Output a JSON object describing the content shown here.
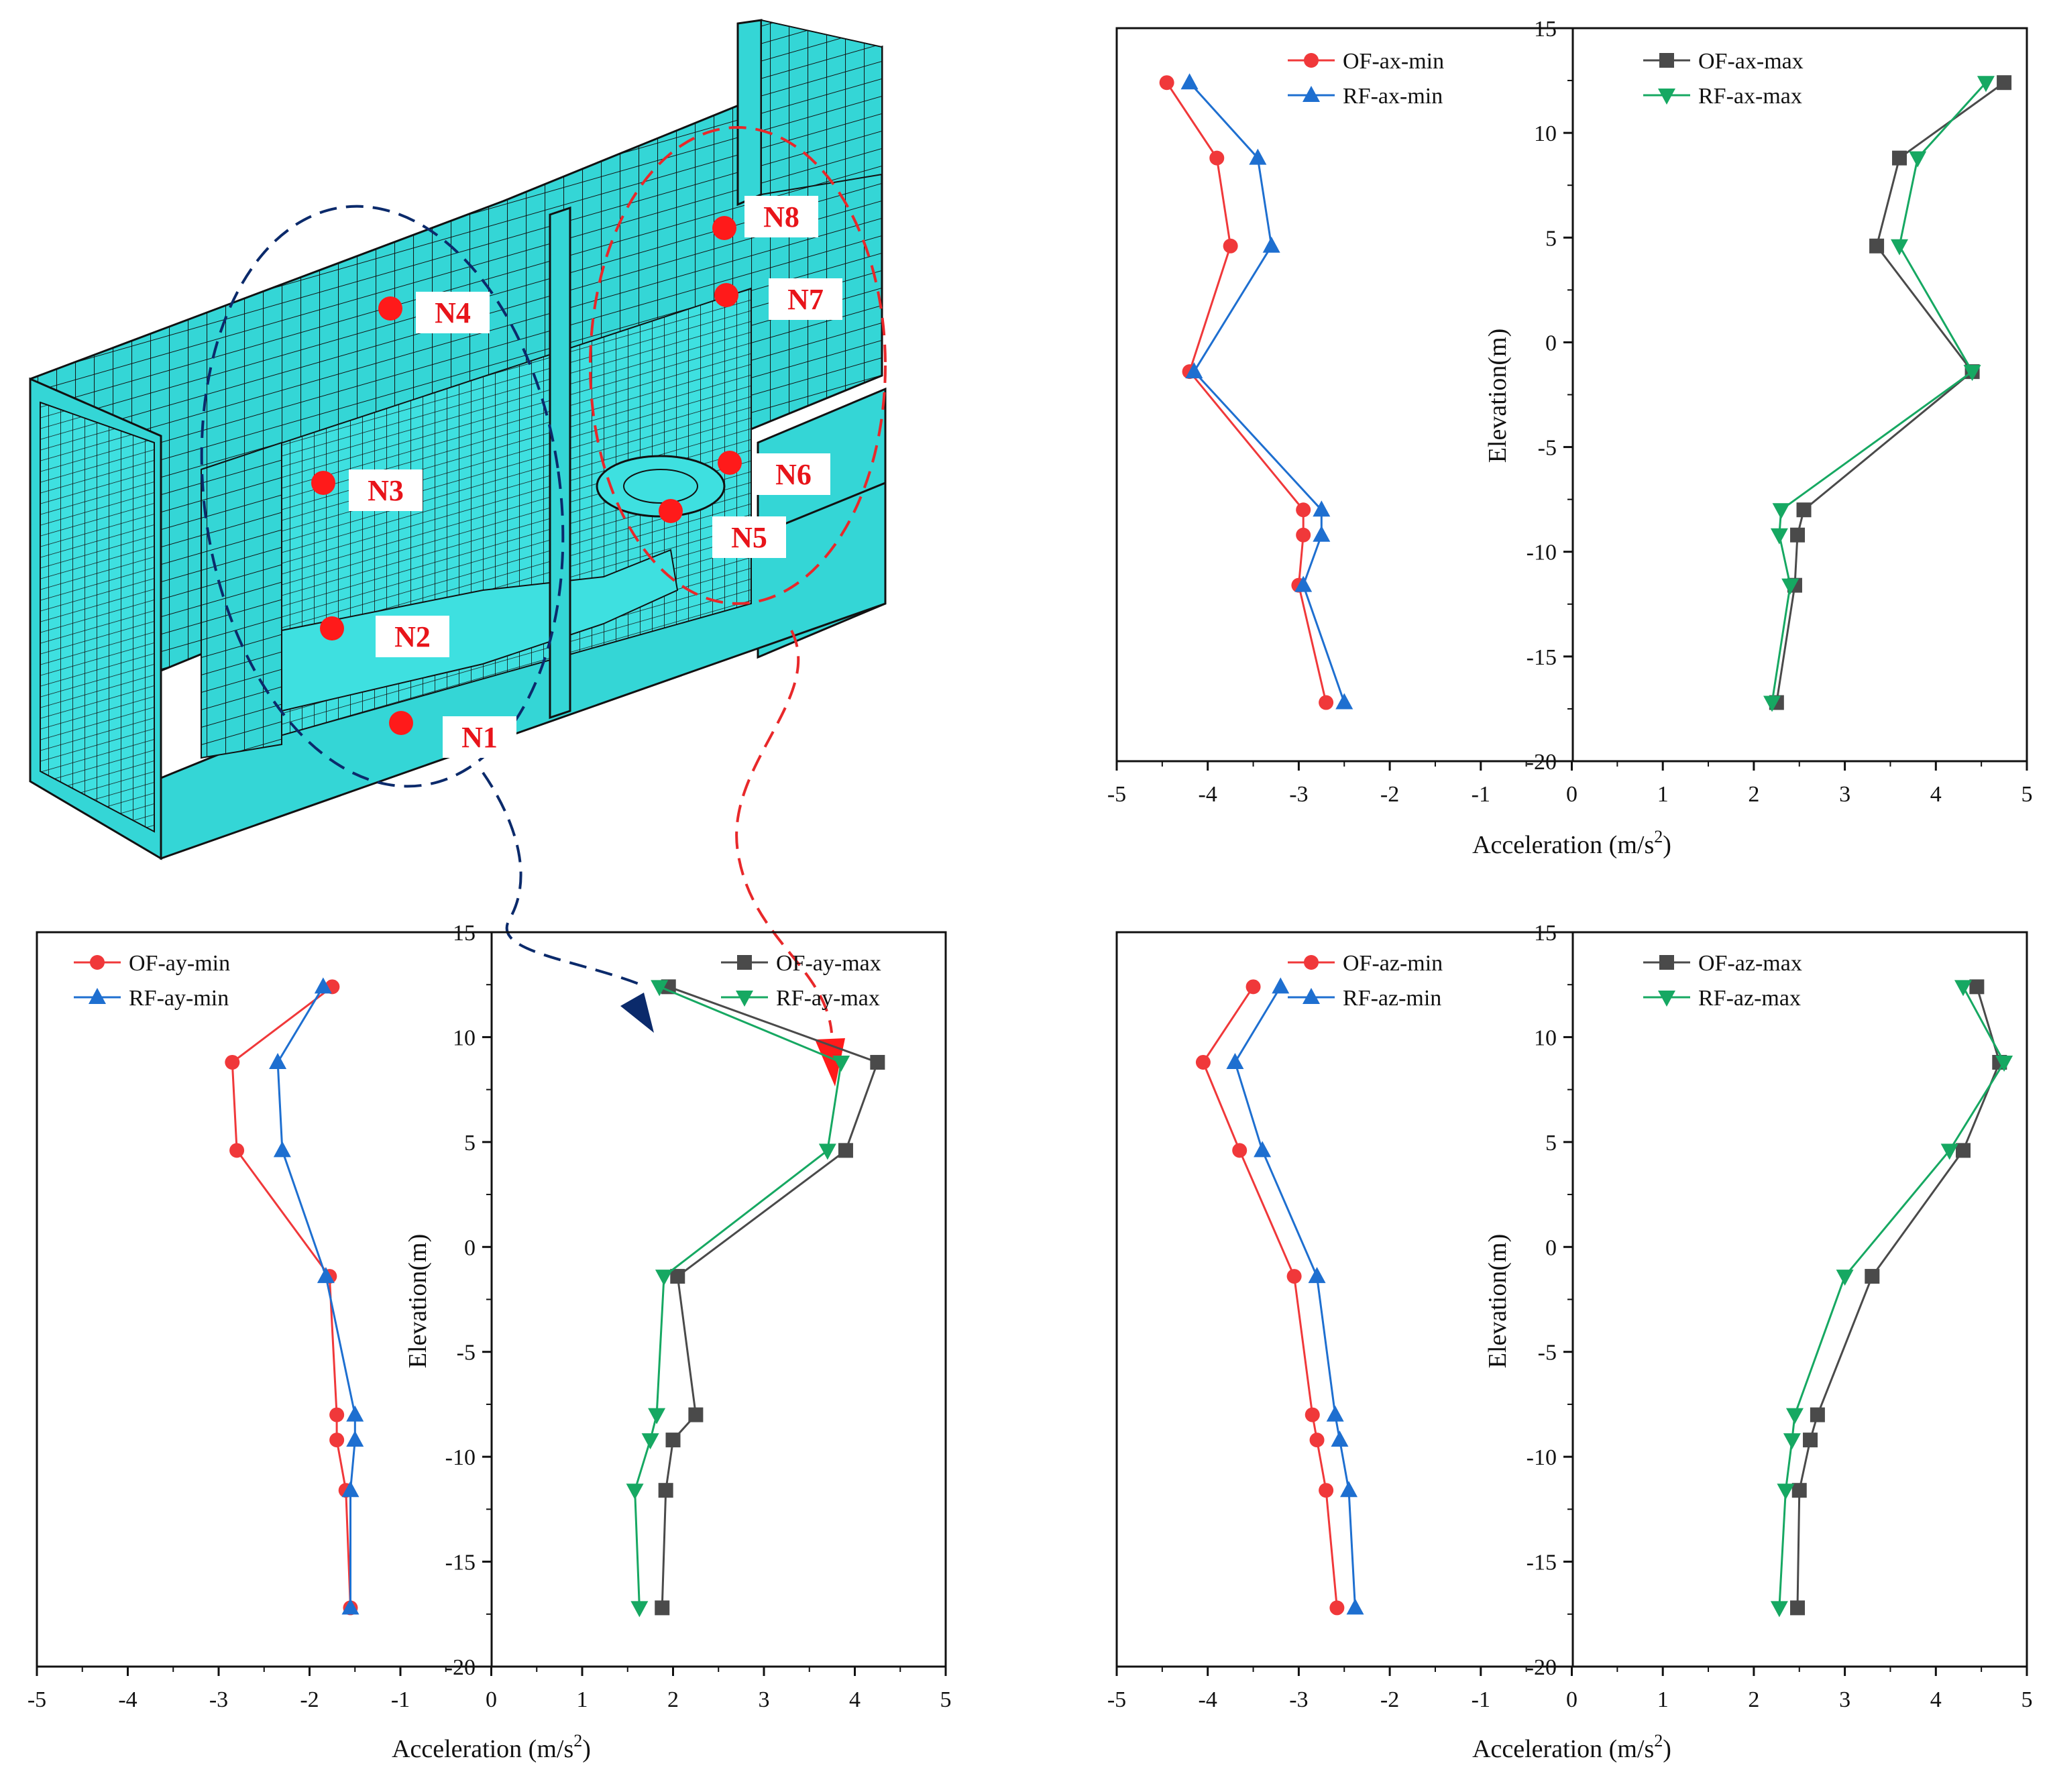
{
  "model": {
    "nodes": [
      "N1",
      "N2",
      "N3",
      "N4",
      "N5",
      "N6",
      "N7",
      "N8"
    ],
    "fill_color": "#34d6d6",
    "mesh_color": "#111111",
    "node_color": "#ff1a1a",
    "left_group_color": "#0b2a6b",
    "right_group_color": "#e8282a"
  },
  "chart_data": [
    {
      "id": "ax",
      "type": "line",
      "xlabel": "Acceleration (m/s2)",
      "xlabel_main": "Acceleration (m/s",
      "xlabel_sup": "2",
      "xlabel_end": ")",
      "ylabel": "Elevation(m)",
      "xlim": [
        -5,
        5
      ],
      "ylim": [
        -20,
        15
      ],
      "xticks": [
        -5,
        -4,
        -3,
        -2,
        -1,
        0,
        1,
        2,
        3,
        4,
        5
      ],
      "yticks": [
        15,
        10,
        5,
        0,
        -5,
        -10,
        -15,
        -20
      ],
      "legend_left": [
        "OF-ax-min",
        "RF-ax-min"
      ],
      "legend_right": [
        "OF-ax-max",
        "RF-ax-max"
      ],
      "series": [
        {
          "name": "OF-ax-min",
          "color": "#f0383a",
          "marker": "circle",
          "points": [
            [
              -4.45,
              12.4
            ],
            [
              -3.9,
              8.8
            ],
            [
              -3.75,
              4.6
            ],
            [
              -4.2,
              -1.4
            ],
            [
              -2.95,
              -8.0
            ],
            [
              -2.95,
              -9.2
            ],
            [
              -3.0,
              -11.6
            ],
            [
              -2.7,
              -17.2
            ]
          ]
        },
        {
          "name": "RF-ax-min",
          "color": "#1e6fd0",
          "marker": "triangle-up",
          "points": [
            [
              -4.2,
              12.4
            ],
            [
              -3.45,
              8.8
            ],
            [
              -3.3,
              4.6
            ],
            [
              -4.15,
              -1.4
            ],
            [
              -2.75,
              -8.0
            ],
            [
              -2.75,
              -9.2
            ],
            [
              -2.95,
              -11.6
            ],
            [
              -2.5,
              -17.2
            ]
          ]
        },
        {
          "name": "OF-ax-max",
          "color": "#4a4a4a",
          "marker": "square",
          "points": [
            [
              4.75,
              12.4
            ],
            [
              3.6,
              8.8
            ],
            [
              3.35,
              4.6
            ],
            [
              4.4,
              -1.4
            ],
            [
              2.55,
              -8.0
            ],
            [
              2.48,
              -9.2
            ],
            [
              2.45,
              -11.6
            ],
            [
              2.25,
              -17.2
            ]
          ]
        },
        {
          "name": "RF-ax-max",
          "color": "#16a862",
          "marker": "triangle-down",
          "points": [
            [
              4.55,
              12.4
            ],
            [
              3.8,
              8.8
            ],
            [
              3.6,
              4.6
            ],
            [
              4.4,
              -1.4
            ],
            [
              2.3,
              -8.0
            ],
            [
              2.28,
              -9.2
            ],
            [
              2.4,
              -11.6
            ],
            [
              2.2,
              -17.2
            ]
          ]
        }
      ]
    },
    {
      "id": "ay",
      "type": "line",
      "xlabel": "Acceleration (m/s2)",
      "xlabel_main": "Acceleration (m/s",
      "xlabel_sup": "2",
      "xlabel_end": ")",
      "ylabel": "Elevation(m)",
      "xlim": [
        -5,
        5
      ],
      "ylim": [
        -20,
        15
      ],
      "xticks": [
        -5,
        -4,
        -3,
        -2,
        -1,
        0,
        1,
        2,
        3,
        4,
        5
      ],
      "yticks": [
        15,
        10,
        5,
        0,
        -5,
        -10,
        -15,
        -20
      ],
      "legend_left": [
        "OF-ay-min",
        "RF-ay-min"
      ],
      "legend_right": [
        "OF-ay-max",
        "RF-ay-max"
      ],
      "series": [
        {
          "name": "OF-ay-min",
          "color": "#f0383a",
          "marker": "circle",
          "points": [
            [
              -1.75,
              12.4
            ],
            [
              -2.85,
              8.8
            ],
            [
              -2.8,
              4.6
            ],
            [
              -1.78,
              -1.4
            ],
            [
              -1.7,
              -8.0
            ],
            [
              -1.7,
              -9.2
            ],
            [
              -1.6,
              -11.6
            ],
            [
              -1.55,
              -17.2
            ]
          ]
        },
        {
          "name": "RF-ay-min",
          "color": "#1e6fd0",
          "marker": "triangle-up",
          "points": [
            [
              -1.85,
              12.4
            ],
            [
              -2.35,
              8.8
            ],
            [
              -2.3,
              4.6
            ],
            [
              -1.82,
              -1.4
            ],
            [
              -1.5,
              -8.0
            ],
            [
              -1.5,
              -9.2
            ],
            [
              -1.55,
              -11.6
            ],
            [
              -1.55,
              -17.2
            ]
          ]
        },
        {
          "name": "OF-ay-max",
          "color": "#4a4a4a",
          "marker": "square",
          "points": [
            [
              1.95,
              12.4
            ],
            [
              4.25,
              8.8
            ],
            [
              3.9,
              4.6
            ],
            [
              2.05,
              -1.4
            ],
            [
              2.25,
              -8.0
            ],
            [
              2.0,
              -9.2
            ],
            [
              1.92,
              -11.6
            ],
            [
              1.88,
              -17.2
            ]
          ]
        },
        {
          "name": "RF-ay-max",
          "color": "#16a862",
          "marker": "triangle-down",
          "points": [
            [
              1.85,
              12.4
            ],
            [
              3.85,
              8.8
            ],
            [
              3.7,
              4.6
            ],
            [
              1.9,
              -1.4
            ],
            [
              1.82,
              -8.0
            ],
            [
              1.75,
              -9.2
            ],
            [
              1.58,
              -11.6
            ],
            [
              1.63,
              -17.2
            ]
          ]
        }
      ]
    },
    {
      "id": "az",
      "type": "line",
      "xlabel": "Acceleration (m/s2)",
      "xlabel_main": "Acceleration (m/s",
      "xlabel_sup": "2",
      "xlabel_end": ")",
      "ylabel": "Elevation(m)",
      "xlim": [
        -5,
        5
      ],
      "ylim": [
        -20,
        15
      ],
      "xticks": [
        -5,
        -4,
        -3,
        -2,
        -1,
        0,
        1,
        2,
        3,
        4,
        5
      ],
      "yticks": [
        15,
        10,
        5,
        0,
        -5,
        -10,
        -15,
        -20
      ],
      "legend_left": [
        "OF-az-min",
        "RF-az-min"
      ],
      "legend_right": [
        "OF-az-max",
        "RF-az-max"
      ],
      "series": [
        {
          "name": "OF-az-min",
          "color": "#f0383a",
          "marker": "circle",
          "points": [
            [
              -3.5,
              12.4
            ],
            [
              -4.05,
              8.8
            ],
            [
              -3.65,
              4.6
            ],
            [
              -3.05,
              -1.4
            ],
            [
              -2.85,
              -8.0
            ],
            [
              -2.8,
              -9.2
            ],
            [
              -2.7,
              -11.6
            ],
            [
              -2.58,
              -17.2
            ]
          ]
        },
        {
          "name": "RF-az-min",
          "color": "#1e6fd0",
          "marker": "triangle-up",
          "points": [
            [
              -3.2,
              12.4
            ],
            [
              -3.7,
              8.8
            ],
            [
              -3.4,
              4.6
            ],
            [
              -2.8,
              -1.4
            ],
            [
              -2.6,
              -8.0
            ],
            [
              -2.55,
              -9.2
            ],
            [
              -2.45,
              -11.6
            ],
            [
              -2.38,
              -17.2
            ]
          ]
        },
        {
          "name": "OF-az-max",
          "color": "#4a4a4a",
          "marker": "square",
          "points": [
            [
              4.45,
              12.4
            ],
            [
              4.7,
              8.8
            ],
            [
              4.3,
              4.6
            ],
            [
              3.3,
              -1.4
            ],
            [
              2.7,
              -8.0
            ],
            [
              2.62,
              -9.2
            ],
            [
              2.5,
              -11.6
            ],
            [
              2.48,
              -17.2
            ]
          ]
        },
        {
          "name": "RF-az-max",
          "color": "#16a862",
          "marker": "triangle-down",
          "points": [
            [
              4.3,
              12.4
            ],
            [
              4.75,
              8.8
            ],
            [
              4.15,
              4.6
            ],
            [
              3.0,
              -1.4
            ],
            [
              2.45,
              -8.0
            ],
            [
              2.42,
              -9.2
            ],
            [
              2.35,
              -11.6
            ],
            [
              2.28,
              -17.2
            ]
          ]
        }
      ]
    }
  ]
}
